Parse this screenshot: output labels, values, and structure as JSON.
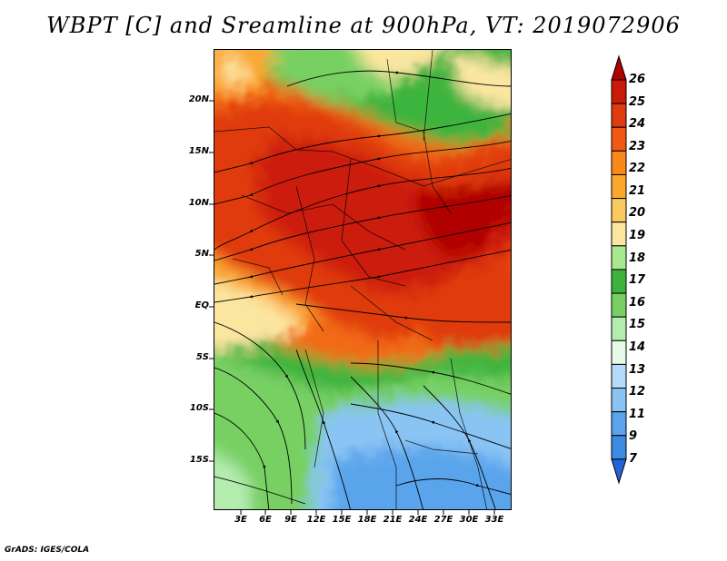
{
  "title": "WBPT [C] and Sreamline at 900hPa, VT: 2019072906",
  "credit": "GrADS: IGES/COLA",
  "map": {
    "lat_labels": [
      "20N",
      "15N",
      "10N",
      "5N",
      "EQ",
      "5S",
      "10S",
      "15S"
    ],
    "lon_labels": [
      "3E",
      "6E",
      "9E",
      "12E",
      "15E",
      "18E",
      "21E",
      "24E",
      "27E",
      "30E",
      "33E"
    ]
  },
  "colorbar": {
    "labels": [
      "26",
      "25",
      "24",
      "23",
      "22",
      "21",
      "20",
      "19",
      "18",
      "17",
      "16",
      "15",
      "14",
      "13",
      "12",
      "11",
      "9",
      "7"
    ],
    "colors": [
      "#b00000",
      "#cc1a0a",
      "#e03a10",
      "#f05a14",
      "#f88a1c",
      "#fba830",
      "#fcc860",
      "#fbe6a0",
      "#a8e890",
      "#3cb43c",
      "#78d064",
      "#b4ecb0",
      "#e6fae6",
      "#b4dcf8",
      "#8ac4f4",
      "#5aa4ec",
      "#3c8ce4",
      "#2464d4"
    ]
  }
}
